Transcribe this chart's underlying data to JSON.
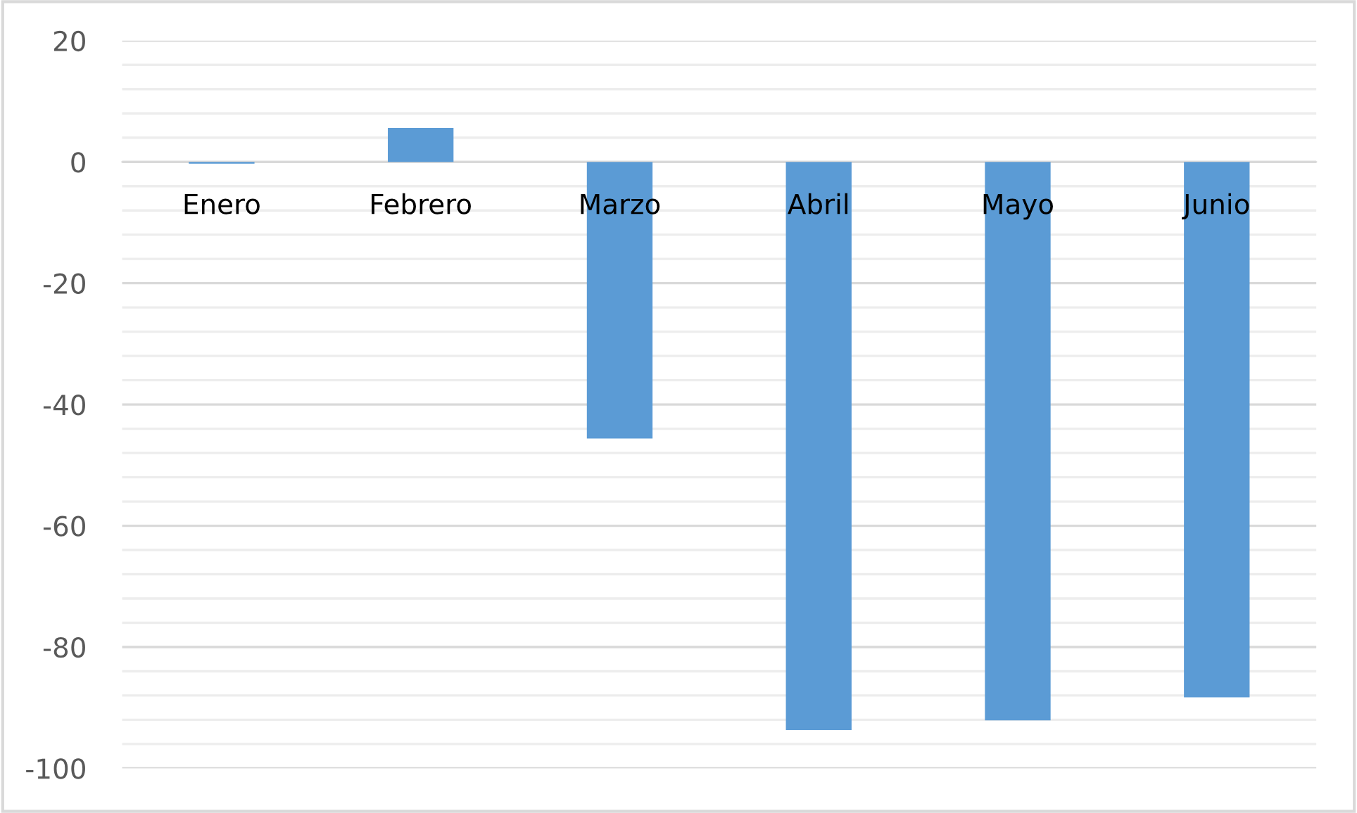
{
  "chart_data": {
    "type": "bar",
    "categories": [
      "Enero",
      "Febrero",
      "Marzo",
      "Abril",
      "Mayo",
      "Junio"
    ],
    "values": [
      -0.3,
      5.6,
      -45.6,
      -93.7,
      -92.1,
      -88.3
    ],
    "color": "#5b9bd5",
    "ylim": [
      -100,
      20
    ],
    "yticks": [
      -100,
      {
        "value": -96,
        "label": null
      },
      {
        "value": -92,
        "label": null
      },
      {
        "value": -88,
        "label": null
      },
      {
        "value": -84,
        "label": null
      },
      -80,
      {
        "value": -76,
        "label": null
      },
      {
        "value": -72,
        "label": null
      },
      {
        "value": -68,
        "label": null
      },
      {
        "value": -64,
        "label": null
      },
      -60,
      {
        "value": -56,
        "label": null
      },
      {
        "value": -52,
        "label": null
      },
      {
        "value": -48,
        "label": null
      },
      {
        "value": -44,
        "label": null
      },
      -40,
      {
        "value": -36,
        "label": null
      },
      {
        "value": -32,
        "label": null
      },
      {
        "value": -28,
        "label": null
      },
      {
        "value": -24,
        "label": null
      },
      -20,
      {
        "value": -16,
        "label": null
      },
      {
        "value": -12,
        "label": null
      },
      {
        "value": -8,
        "label": null
      },
      {
        "value": -4,
        "label": null
      },
      0,
      {
        "value": 4,
        "label": null
      },
      {
        "value": 8,
        "label": null
      },
      {
        "value": 12,
        "label": null
      },
      {
        "value": 16,
        "label": null
      },
      20
    ],
    "grid": "y"
  }
}
